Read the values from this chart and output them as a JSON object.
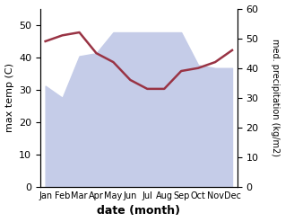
{
  "months": [
    "Jan",
    "Feb",
    "Mar",
    "Apr",
    "May",
    "Jun",
    "Jul",
    "Aug",
    "Sep",
    "Oct",
    "Nov",
    "Dec"
  ],
  "month_indices": [
    0,
    1,
    2,
    3,
    4,
    5,
    6,
    7,
    8,
    9,
    10,
    11
  ],
  "precipitation": [
    34,
    30,
    44,
    45,
    52,
    52,
    52,
    52,
    52,
    41,
    40,
    40
  ],
  "temperature": [
    49,
    51,
    52,
    45,
    42,
    36,
    33,
    33,
    39,
    40,
    42,
    46
  ],
  "precip_fill_color": "#c5cce8",
  "temp_color": "#993344",
  "ylabel_left": "max temp (C)",
  "ylabel_right": "med. precipitation (kg/m2)",
  "xlabel": "date (month)",
  "ylim_left": [
    0,
    55
  ],
  "ylim_right": [
    0,
    60
  ],
  "yticks_left": [
    0,
    10,
    20,
    30,
    40,
    50
  ],
  "yticks_right": [
    0,
    10,
    20,
    30,
    40,
    50,
    60
  ],
  "background_color": "#ffffff"
}
